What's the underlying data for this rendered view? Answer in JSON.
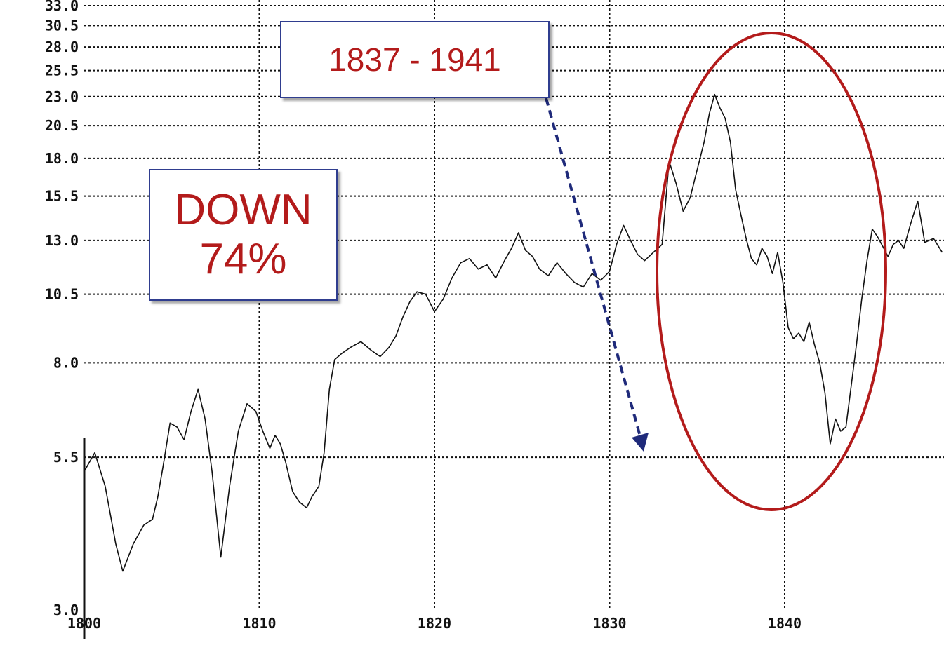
{
  "chart_data": {
    "type": "line",
    "title": "",
    "xlabel": "",
    "ylabel": "",
    "y_scale": "log",
    "xlim": [
      1800,
      1849
    ],
    "ylim": [
      3.0,
      33.0
    ],
    "grid": true,
    "y_ticks": [
      "33.0",
      "30.5",
      "28.0",
      "25.5",
      "23.0",
      "20.5",
      "18.0",
      "15.5",
      "13.0",
      "10.5",
      "8.0",
      "5.5",
      "3.0"
    ],
    "x_ticks": [
      "1800",
      "1810",
      "1820",
      "1830",
      "1840"
    ],
    "series": [
      {
        "name": "",
        "x": [
          1800,
          1800.6,
          1801.2,
          1801.8,
          1802.2,
          1802.8,
          1803.4,
          1803.9,
          1804.2,
          1804.5,
          1804.9,
          1805.3,
          1805.7,
          1806.1,
          1806.5,
          1806.9,
          1807.3,
          1807.8,
          1808.3,
          1808.8,
          1809.3,
          1809.8,
          1810.2,
          1810.6,
          1810.9,
          1811.2,
          1811.5,
          1811.9,
          1812.3,
          1812.7,
          1813.0,
          1813.4,
          1813.7,
          1814.0,
          1814.3,
          1814.7,
          1815.2,
          1815.8,
          1816.4,
          1816.9,
          1817.4,
          1817.8,
          1818.2,
          1818.6,
          1819.0,
          1819.5,
          1820.0,
          1820.5,
          1821.0,
          1821.5,
          1822.0,
          1822.5,
          1823.0,
          1823.5,
          1824.0,
          1824.4,
          1824.8,
          1825.2,
          1825.6,
          1826.0,
          1826.5,
          1827.0,
          1827.5,
          1828.0,
          1828.5,
          1829.0,
          1829.5,
          1830.0,
          1830.4,
          1830.8,
          1831.2,
          1831.6,
          1832.0,
          1832.5,
          1833.0,
          1833.4,
          1833.8,
          1834.2,
          1834.6,
          1835.0,
          1835.4,
          1835.7,
          1836.0,
          1836.3,
          1836.6,
          1836.9,
          1837.2,
          1837.5,
          1837.8,
          1838.1,
          1838.4,
          1838.7,
          1839.0,
          1839.3,
          1839.6,
          1839.9,
          1840.2,
          1840.5,
          1840.8,
          1841.1,
          1841.4,
          1841.7,
          1842.0,
          1842.3,
          1842.6,
          1842.9,
          1843.2,
          1843.5,
          1843.8,
          1844.1,
          1844.4,
          1844.7,
          1845.0,
          1845.3,
          1845.6,
          1845.9,
          1846.2,
          1846.5,
          1846.8,
          1847.2,
          1847.6,
          1848.0,
          1848.5,
          1849.0
        ],
        "values": [
          5.2,
          5.6,
          4.9,
          3.9,
          3.5,
          3.9,
          4.2,
          4.3,
          4.7,
          5.3,
          6.3,
          6.2,
          5.9,
          6.6,
          7.2,
          6.4,
          5.2,
          3.7,
          4.9,
          6.1,
          6.8,
          6.6,
          6.1,
          5.7,
          6.0,
          5.8,
          5.4,
          4.8,
          4.6,
          4.5,
          4.7,
          4.9,
          5.6,
          7.2,
          8.1,
          8.3,
          8.5,
          8.7,
          8.4,
          8.2,
          8.5,
          8.9,
          9.6,
          10.2,
          10.6,
          10.5,
          9.8,
          10.3,
          11.2,
          11.9,
          12.1,
          11.6,
          11.8,
          11.2,
          12.0,
          12.6,
          13.4,
          12.5,
          12.2,
          11.6,
          11.3,
          11.9,
          11.4,
          11.0,
          10.8,
          11.4,
          11.1,
          11.5,
          12.8,
          13.8,
          13.0,
          12.3,
          12.0,
          12.4,
          12.8,
          17.8,
          16.3,
          14.6,
          15.4,
          17.2,
          19.2,
          21.5,
          23.2,
          22.0,
          21.1,
          19.2,
          15.9,
          14.4,
          13.1,
          12.1,
          11.8,
          12.6,
          12.2,
          11.4,
          12.4,
          11.0,
          9.2,
          8.8,
          9.0,
          8.7,
          9.4,
          8.6,
          8.0,
          7.1,
          5.8,
          6.4,
          6.1,
          6.2,
          7.3,
          8.6,
          10.3,
          12.0,
          13.6,
          13.2,
          12.7,
          12.2,
          12.8,
          13.0,
          12.6,
          13.9,
          15.2,
          12.9,
          13.1,
          12.4
        ]
      }
    ]
  },
  "annotations": {
    "period_label": "1837 - 1941",
    "down_line1": "DOWN",
    "down_line2": "74%"
  },
  "colors": {
    "annotation_text": "#b31b1b",
    "ellipse": "#b31b1b",
    "arrow": "#1f2a7a",
    "box_border": "#2f3d8f"
  }
}
